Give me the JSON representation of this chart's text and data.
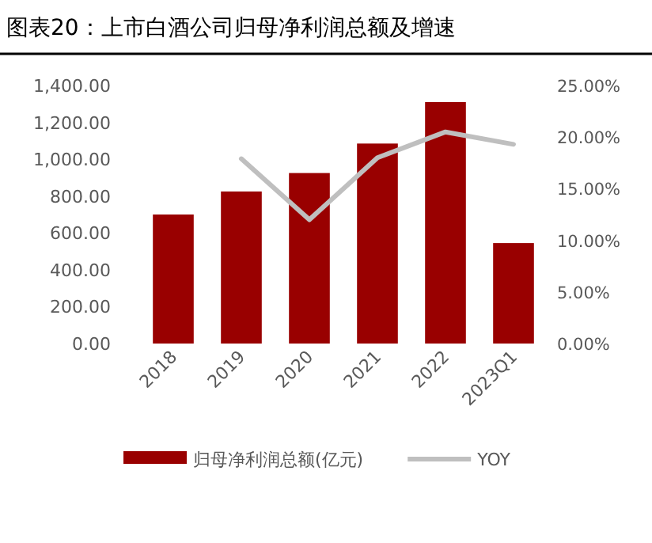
{
  "chart_data": {
    "type": "bar",
    "title": "图表20：上市白酒公司归母净利润总额及增速",
    "categories": [
      "2018",
      "2019",
      "2020",
      "2021",
      "2022",
      "2023Q1"
    ],
    "series": [
      {
        "name": "归母净利润总额(亿元)",
        "color": "#990000",
        "values": [
          700,
          825,
          925,
          1085,
          1310,
          545
        ]
      },
      {
        "name": "YOY",
        "type": "line",
        "axis": "y2",
        "color": "#bfbfbf",
        "values": [
          null,
          17.9,
          12.0,
          18.0,
          20.5,
          19.3
        ]
      }
    ],
    "ylim": [
      0,
      1400
    ],
    "yticks": [
      {
        "value": 0,
        "label": "0.00"
      },
      {
        "value": 200,
        "label": "200.00"
      },
      {
        "value": 400,
        "label": "400.00"
      },
      {
        "value": 600,
        "label": "600.00"
      },
      {
        "value": 800,
        "label": "800.00"
      },
      {
        "value": 1000,
        "label": "1,000.00"
      },
      {
        "value": 1200,
        "label": "1,200.00"
      },
      {
        "value": 1400,
        "label": "1,400.00"
      }
    ],
    "y2lim": [
      0,
      25
    ],
    "y2ticks": [
      {
        "value": 0,
        "label": "0.00%"
      },
      {
        "value": 5,
        "label": "5.00%"
      },
      {
        "value": 10,
        "label": "10.00%"
      },
      {
        "value": 15,
        "label": "15.00%"
      },
      {
        "value": 20,
        "label": "20.00%"
      },
      {
        "value": 25,
        "label": "25.00%"
      }
    ],
    "legend": "bottom",
    "grid": false
  }
}
